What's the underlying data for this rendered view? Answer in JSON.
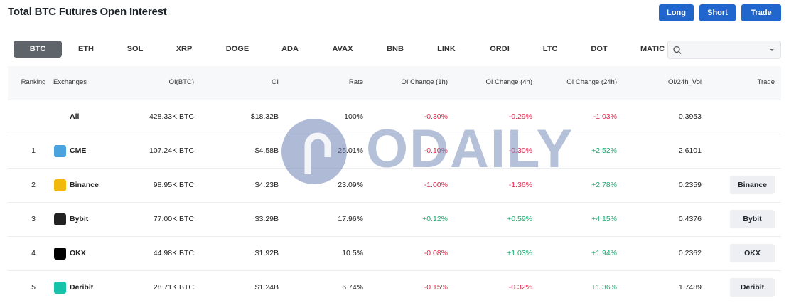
{
  "header": {
    "title": "Total BTC Futures Open Interest",
    "buttons": [
      "Long",
      "Short",
      "Trade"
    ]
  },
  "tabs": [
    "BTC",
    "ETH",
    "SOL",
    "XRP",
    "DOGE",
    "ADA",
    "AVAX",
    "BNB",
    "LINK",
    "ORDI",
    "LTC",
    "DOT",
    "MATIC"
  ],
  "watermark": "ODAILY",
  "table": {
    "columns": [
      "Ranking",
      "Exchanges",
      "OI(BTC)",
      "OI",
      "Rate",
      "OI Change (1h)",
      "OI Change (4h)",
      "OI Change (24h)",
      "OI/24h_Vol",
      "Trade"
    ],
    "total": {
      "exchange": "All",
      "oi_btc": "428.33K BTC",
      "oi": "$18.32B",
      "rate": "100%",
      "ch1h": "-0.30%",
      "ch4h": "-0.29%",
      "ch24h": "-1.03%",
      "vol": "0.3953"
    },
    "rows": [
      {
        "rank": "1",
        "exchange": "CME",
        "oi_btc": "107.24K BTC",
        "oi": "$4.58B",
        "rate": "25.01%",
        "ch1h": "-0.10%",
        "ch4h": "-0.30%",
        "ch24h": "+2.52%",
        "vol": "2.6101"
      },
      {
        "rank": "2",
        "exchange": "Binance",
        "oi_btc": "98.95K BTC",
        "oi": "$4.23B",
        "rate": "23.09%",
        "ch1h": "-1.00%",
        "ch4h": "-1.36%",
        "ch24h": "+2.78%",
        "vol": "0.2359",
        "trade": "Binance"
      },
      {
        "rank": "3",
        "exchange": "Bybit",
        "oi_btc": "77.00K BTC",
        "oi": "$3.29B",
        "rate": "17.96%",
        "ch1h": "+0.12%",
        "ch4h": "+0.59%",
        "ch24h": "+4.15%",
        "vol": "0.4376",
        "trade": "Bybit"
      },
      {
        "rank": "4",
        "exchange": "OKX",
        "oi_btc": "44.98K BTC",
        "oi": "$1.92B",
        "rate": "10.5%",
        "ch1h": "-0.08%",
        "ch4h": "+1.03%",
        "ch24h": "+1.94%",
        "vol": "0.2362",
        "trade": "OKX"
      },
      {
        "rank": "5",
        "exchange": "Deribit",
        "oi_btc": "28.71K BTC",
        "oi": "$1.24B",
        "rate": "6.74%",
        "ch1h": "-0.15%",
        "ch4h": "-0.32%",
        "ch24h": "+1.36%",
        "vol": "1.7489",
        "trade": "Deribit"
      }
    ]
  }
}
